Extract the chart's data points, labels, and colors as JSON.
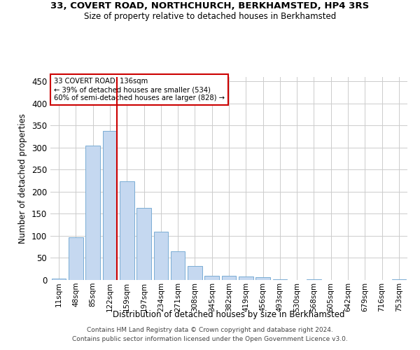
{
  "title_line1": "33, COVERT ROAD, NORTHCHURCH, BERKHAMSTED, HP4 3RS",
  "title_line2": "Size of property relative to detached houses in Berkhamsted",
  "xlabel": "Distribution of detached houses by size in Berkhamsted",
  "ylabel": "Number of detached properties",
  "categories": [
    "11sqm",
    "48sqm",
    "85sqm",
    "122sqm",
    "159sqm",
    "197sqm",
    "234sqm",
    "271sqm",
    "308sqm",
    "345sqm",
    "382sqm",
    "419sqm",
    "456sqm",
    "493sqm",
    "530sqm",
    "568sqm",
    "605sqm",
    "642sqm",
    "679sqm",
    "716sqm",
    "753sqm"
  ],
  "values": [
    3,
    97,
    304,
    338,
    224,
    164,
    109,
    65,
    32,
    10,
    9,
    8,
    6,
    2,
    0,
    1,
    0,
    0,
    0,
    0,
    1
  ],
  "bar_color": "#c5d8f0",
  "bar_edge_color": "#7aadd4",
  "red_line_index": 3,
  "annotation_text_line1": "33 COVERT ROAD: 136sqm",
  "annotation_text_line2": "← 39% of detached houses are smaller (534)",
  "annotation_text_line3": "60% of semi-detached houses are larger (828) →",
  "annotation_box_color": "#ffffff",
  "annotation_box_edge": "#cc0000",
  "red_line_color": "#cc0000",
  "ylim": [
    0,
    460
  ],
  "yticks": [
    0,
    50,
    100,
    150,
    200,
    250,
    300,
    350,
    400,
    450
  ],
  "footnote1": "Contains HM Land Registry data © Crown copyright and database right 2024.",
  "footnote2": "Contains public sector information licensed under the Open Government Licence v3.0.",
  "bg_color": "#ffffff",
  "grid_color": "#cccccc"
}
